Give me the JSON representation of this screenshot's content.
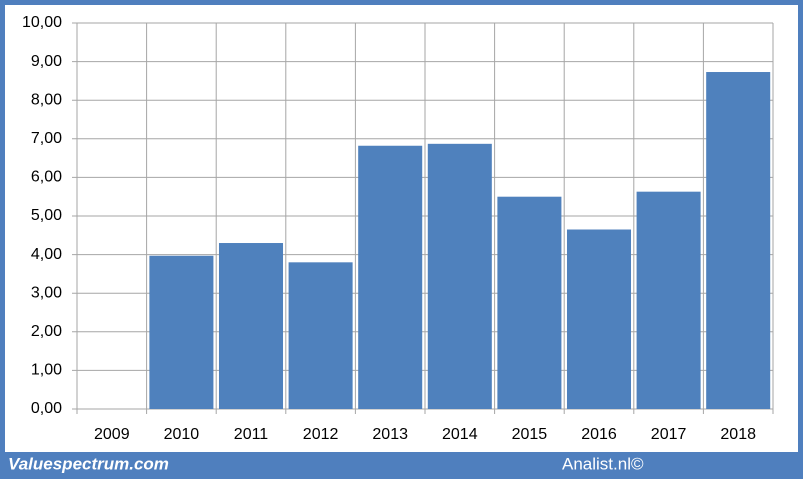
{
  "chart_data": {
    "type": "bar",
    "categories": [
      "2009",
      "2010",
      "2011",
      "2012",
      "2013",
      "2014",
      "2015",
      "2016",
      "2017",
      "2018"
    ],
    "values": [
      null,
      3.97,
      4.3,
      3.8,
      6.82,
      6.87,
      5.5,
      4.65,
      5.63,
      8.73
    ],
    "color": "#4f81bd",
    "ylim": [
      0,
      10
    ],
    "yticks": [
      {
        "value": 0,
        "label": "0,00"
      },
      {
        "value": 1,
        "label": "1,00"
      },
      {
        "value": 2,
        "label": "2,00"
      },
      {
        "value": 3,
        "label": "3,00"
      },
      {
        "value": 4,
        "label": "4,00"
      },
      {
        "value": 5,
        "label": "5,00"
      },
      {
        "value": 6,
        "label": "6,00"
      },
      {
        "value": 7,
        "label": "7,00"
      },
      {
        "value": 8,
        "label": "8,00"
      },
      {
        "value": 9,
        "label": "9,00"
      },
      {
        "value": 10,
        "label": "10,00"
      }
    ],
    "grid": true
  },
  "footer": {
    "left": "Valuespectrum.com",
    "right": "Analist.nl©"
  }
}
